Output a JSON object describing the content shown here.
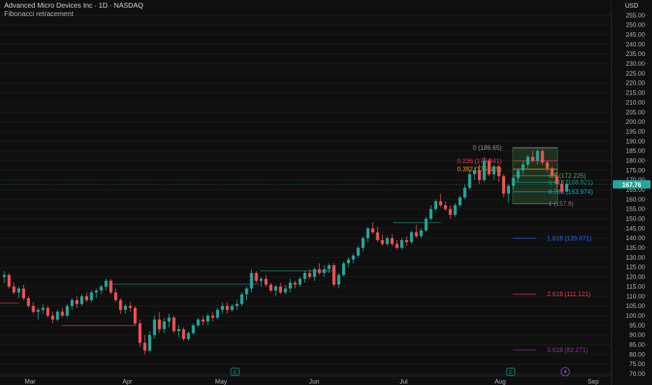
{
  "chart_data": {
    "type": "candlestick",
    "title": "Advanced Micro Devices Inc · 1D · NASDAQ",
    "indicator": "Fibonacci retracement",
    "currency": "USD",
    "last_price": "167.76",
    "ylim": [
      70,
      260
    ],
    "y_ticks": [
      "255.00",
      "250.00",
      "245.00",
      "240.00",
      "235.00",
      "230.00",
      "225.00",
      "220.00",
      "215.00",
      "210.00",
      "205.00",
      "200.00",
      "195.00",
      "190.00",
      "185.00",
      "180.00",
      "175.00",
      "170.00",
      "165.00",
      "160.00",
      "155.00",
      "150.00",
      "145.00",
      "140.00",
      "135.00",
      "130.00",
      "125.00",
      "120.00",
      "115.00",
      "110.00",
      "105.00",
      "100.00",
      "95.00",
      "90.00",
      "85.00",
      "80.00",
      "75.00",
      "70.00"
    ],
    "x_labels": [
      "Mar",
      "Apr",
      "May",
      "Jun",
      "Jul",
      "Aug",
      "Sep"
    ],
    "candles": [
      [
        120,
        123,
        117,
        121
      ],
      [
        121,
        122,
        114,
        115
      ],
      [
        115,
        117,
        111,
        112
      ],
      [
        112,
        115,
        109,
        114
      ],
      [
        114,
        116,
        108,
        109
      ],
      [
        109,
        110,
        104,
        105
      ],
      [
        105,
        107,
        101,
        102
      ],
      [
        102,
        104,
        98,
        103
      ],
      [
        103,
        106,
        101,
        104
      ],
      [
        104,
        105,
        99,
        100
      ],
      [
        100,
        102,
        96,
        98
      ],
      [
        98,
        103,
        97,
        102
      ],
      [
        102,
        104,
        99,
        100
      ],
      [
        100,
        106,
        99,
        105
      ],
      [
        105,
        109,
        103,
        108
      ],
      [
        108,
        110,
        104,
        106
      ],
      [
        106,
        111,
        105,
        110
      ],
      [
        110,
        112,
        107,
        108
      ],
      [
        108,
        113,
        107,
        112
      ],
      [
        112,
        114,
        109,
        113
      ],
      [
        113,
        116,
        111,
        115
      ],
      [
        115,
        119,
        113,
        118
      ],
      [
        118,
        119,
        111,
        112
      ],
      [
        112,
        114,
        107,
        108
      ],
      [
        108,
        109,
        101,
        103
      ],
      [
        103,
        106,
        101,
        105
      ],
      [
        105,
        107,
        102,
        104
      ],
      [
        104,
        105,
        95,
        96
      ],
      [
        96,
        98,
        84,
        86
      ],
      [
        86,
        90,
        80,
        82
      ],
      [
        82,
        92,
        81,
        90
      ],
      [
        90,
        100,
        88,
        98
      ],
      [
        98,
        102,
        91,
        93
      ],
      [
        93,
        99,
        91,
        97
      ],
      [
        97,
        101,
        94,
        99
      ],
      [
        99,
        100,
        91,
        92
      ],
      [
        92,
        95,
        89,
        93
      ],
      [
        93,
        94,
        87,
        88
      ],
      [
        88,
        92,
        87,
        91
      ],
      [
        91,
        96,
        90,
        95
      ],
      [
        95,
        99,
        94,
        98
      ],
      [
        98,
        100,
        95,
        97
      ],
      [
        97,
        101,
        95,
        100
      ],
      [
        100,
        102,
        97,
        99
      ],
      [
        99,
        104,
        98,
        103
      ],
      [
        103,
        107,
        101,
        105
      ],
      [
        105,
        107,
        101,
        103
      ],
      [
        103,
        106,
        102,
        105
      ],
      [
        105,
        108,
        103,
        106
      ],
      [
        106,
        112,
        105,
        111
      ],
      [
        111,
        115,
        108,
        114
      ],
      [
        114,
        124,
        112,
        122
      ],
      [
        122,
        123,
        117,
        118
      ],
      [
        118,
        120,
        115,
        119
      ],
      [
        119,
        121,
        115,
        116
      ],
      [
        116,
        117,
        112,
        113
      ],
      [
        113,
        116,
        110,
        115
      ],
      [
        115,
        117,
        111,
        112
      ],
      [
        112,
        116,
        111,
        114
      ],
      [
        114,
        119,
        112,
        117
      ],
      [
        117,
        118,
        114,
        116
      ],
      [
        116,
        120,
        115,
        119
      ],
      [
        119,
        123,
        117,
        122
      ],
      [
        122,
        124,
        119,
        120
      ],
      [
        120,
        125,
        118,
        124
      ],
      [
        124,
        127,
        121,
        122
      ],
      [
        122,
        126,
        120,
        124
      ],
      [
        124,
        127,
        122,
        126
      ],
      [
        126,
        127,
        115,
        116
      ],
      [
        116,
        122,
        114,
        121
      ],
      [
        121,
        128,
        120,
        127
      ],
      [
        127,
        130,
        125,
        129
      ],
      [
        129,
        132,
        127,
        131
      ],
      [
        131,
        136,
        130,
        135
      ],
      [
        135,
        141,
        133,
        140
      ],
      [
        140,
        146,
        138,
        145
      ],
      [
        145,
        148,
        142,
        143
      ],
      [
        143,
        146,
        138,
        139
      ],
      [
        139,
        142,
        136,
        137
      ],
      [
        137,
        141,
        136,
        140
      ],
      [
        140,
        142,
        136,
        137
      ],
      [
        137,
        139,
        134,
        135
      ],
      [
        135,
        140,
        134,
        139
      ],
      [
        139,
        141,
        136,
        138
      ],
      [
        138,
        144,
        137,
        143
      ],
      [
        143,
        147,
        140,
        141
      ],
      [
        141,
        145,
        140,
        144
      ],
      [
        144,
        151,
        143,
        150
      ],
      [
        150,
        157,
        149,
        155
      ],
      [
        155,
        160,
        154,
        159
      ],
      [
        159,
        163,
        156,
        157
      ],
      [
        157,
        159,
        154,
        155
      ],
      [
        155,
        157,
        150,
        152
      ],
      [
        152,
        158,
        151,
        157
      ],
      [
        157,
        162,
        156,
        161
      ],
      [
        161,
        168,
        160,
        166
      ],
      [
        166,
        175,
        165,
        173
      ],
      [
        173,
        177,
        170,
        175
      ],
      [
        175,
        178,
        168,
        170
      ],
      [
        170,
        182,
        169,
        180
      ],
      [
        180,
        181,
        172,
        173
      ],
      [
        173,
        178,
        170,
        177
      ],
      [
        177,
        178,
        169,
        172
      ],
      [
        172,
        173,
        161,
        163
      ],
      [
        163,
        168,
        158,
        167
      ],
      [
        167,
        172,
        165,
        171
      ],
      [
        171,
        176,
        169,
        175
      ],
      [
        175,
        180,
        173,
        178
      ],
      [
        178,
        183,
        176,
        182
      ],
      [
        182,
        185,
        179,
        180
      ],
      [
        180,
        186,
        178,
        185
      ],
      [
        185,
        186,
        178,
        179
      ],
      [
        179,
        180,
        174,
        176
      ],
      [
        176,
        177,
        171,
        172
      ],
      [
        172,
        174,
        166,
        168
      ],
      [
        168,
        170,
        163,
        164
      ],
      [
        164,
        170,
        163,
        168
      ]
    ],
    "fib_levels": [
      {
        "ratio": "0",
        "value": "186.65",
        "price": 186.65,
        "color": "#9598a1"
      },
      {
        "ratio": "0.236",
        "value": "179.841",
        "price": 179.841,
        "color": "#f23645"
      },
      {
        "ratio": "0.382",
        "value": "175.629",
        "price": 175.629,
        "color": "#ff9800"
      },
      {
        "ratio": "0.5",
        "value": "172.225",
        "price": 172.225,
        "color": "#4caf50"
      },
      {
        "ratio": "0.618",
        "value": "168.821",
        "price": 168.821,
        "color": "#089981"
      },
      {
        "ratio": "0.786",
        "value": "163.974",
        "price": 163.974,
        "color": "#00bcd4"
      },
      {
        "ratio": "1",
        "value": "157.8",
        "price": 157.8,
        "color": "#787b86"
      },
      {
        "ratio": "1.618",
        "value": "139.971",
        "price": 139.971,
        "color": "#2962ff"
      },
      {
        "ratio": "2.618",
        "value": "111.121",
        "price": 111.121,
        "color": "#f23645"
      },
      {
        "ratio": "3.618",
        "value": "82.271",
        "price": 82.271,
        "color": "#9c27b0"
      }
    ],
    "colors": {
      "up": "#26a69a",
      "down": "#ef5350",
      "background": "#0f0f0f",
      "grid": "#1c1c1c",
      "axis_text": "#b2b5be",
      "price_label": "#26a69a",
      "fib_box": "#4caf50"
    },
    "earnings_marker": "E",
    "dividend_icon": "lightning-icon"
  }
}
